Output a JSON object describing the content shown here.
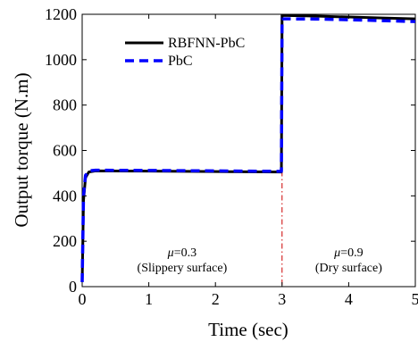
{
  "chart_data": {
    "type": "line",
    "xlabel": "Time (sec)",
    "ylabel": "Output torque (N.m)",
    "xlim": [
      0,
      5
    ],
    "ylim": [
      0,
      1200
    ],
    "xticks": [
      "0",
      "1",
      "2",
      "3",
      "4",
      "5"
    ],
    "yticks": [
      "0",
      "200",
      "400",
      "600",
      "800",
      "1000",
      "1200"
    ],
    "grid": false,
    "legend_position": "top-left",
    "series": [
      {
        "name": "RBFNN-PbC",
        "color": "#000000",
        "style": "solid",
        "points": [
          [
            0.0,
            20
          ],
          [
            0.02,
            380
          ],
          [
            0.05,
            480
          ],
          [
            0.1,
            505
          ],
          [
            0.2,
            510
          ],
          [
            1.0,
            509
          ],
          [
            2.0,
            507
          ],
          [
            2.99,
            505
          ],
          [
            3.0,
            1195
          ],
          [
            3.5,
            1192
          ],
          [
            4.0,
            1188
          ],
          [
            4.5,
            1184
          ],
          [
            5.0,
            1180
          ]
        ]
      },
      {
        "name": "PbC",
        "color": "#0000ff",
        "style": "dashed",
        "points": [
          [
            0.0,
            20
          ],
          [
            0.02,
            400
          ],
          [
            0.05,
            490
          ],
          [
            0.1,
            510
          ],
          [
            0.2,
            513
          ],
          [
            1.0,
            512
          ],
          [
            2.0,
            510
          ],
          [
            2.99,
            508
          ],
          [
            3.0,
            1180
          ],
          [
            3.5,
            1179
          ],
          [
            4.0,
            1176
          ],
          [
            4.5,
            1172
          ],
          [
            5.0,
            1168
          ]
        ]
      }
    ],
    "annotations": [
      {
        "mu": "0.3",
        "label": "(Slippery surface)",
        "x": 1.5
      },
      {
        "mu": "0.9",
        "label": "(Dry surface)",
        "x": 4.0
      }
    ],
    "divider": {
      "x": 3.0,
      "color": "#cc0000"
    }
  }
}
